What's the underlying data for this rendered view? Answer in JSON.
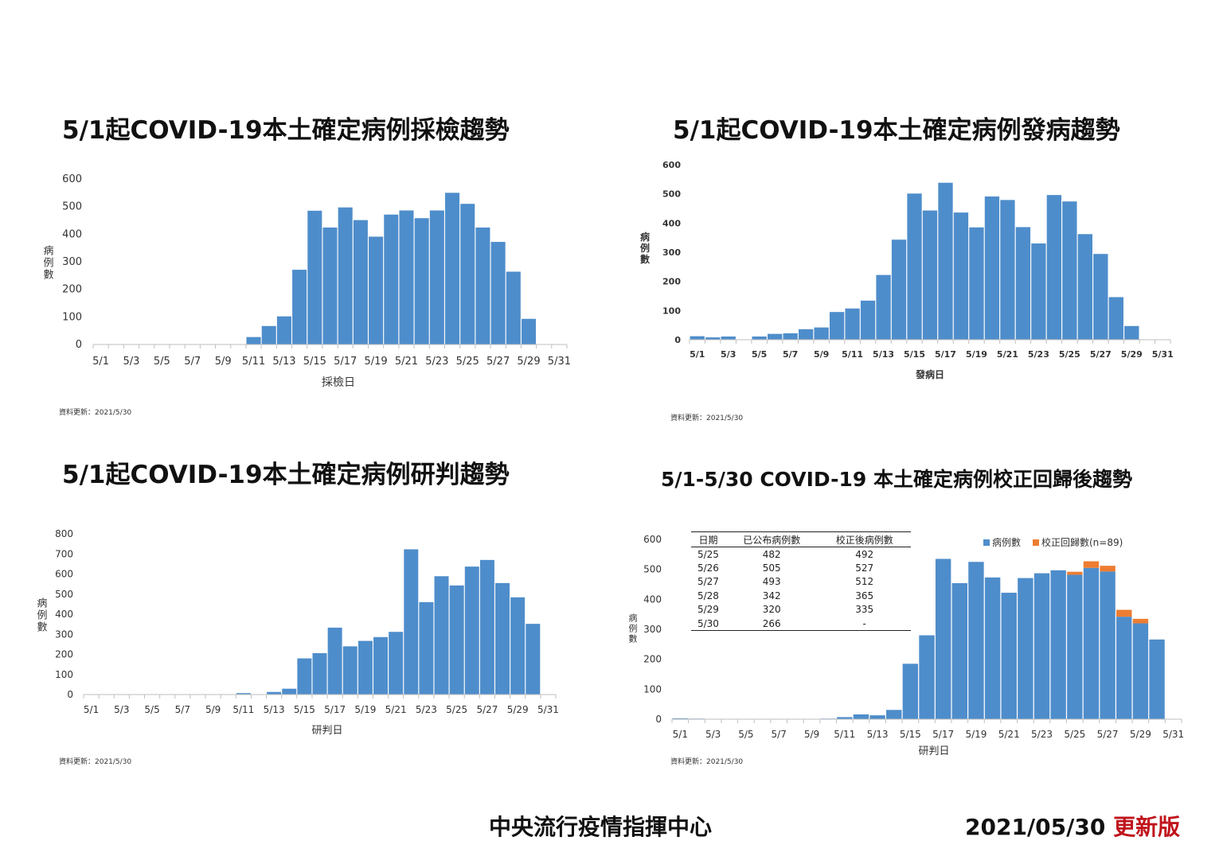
{
  "colors": {
    "bar": "#4e8dcb",
    "correction": "#ed7d31",
    "axis": "#bfbfbf",
    "text": "#333333",
    "edition": "#c0141c"
  },
  "x_ticks": [
    "5/1",
    "5/3",
    "5/5",
    "5/7",
    "5/9",
    "5/11",
    "5/13",
    "5/15",
    "5/17",
    "5/19",
    "5/21",
    "5/23",
    "5/25",
    "5/27",
    "5/29",
    "5/31"
  ],
  "panels": {
    "sampling": {
      "title": "5/1起COVID-19本土確定病例採檢趨勢",
      "xlabel": "採檢日",
      "ylabel": "病例數",
      "footnote": "資料更新：2021/5/30"
    },
    "onset": {
      "title": "5/1起COVID-19本土確定病例發病趨勢",
      "xlabel": "發病日",
      "ylabel": "病例數",
      "footnote": "資料更新：2021/5/30"
    },
    "diagnosis": {
      "title": "5/1起COVID-19本土確定病例研判趨勢",
      "xlabel": "研判日",
      "ylabel": "病例數",
      "footnote": "資料更新：2021/5/30"
    },
    "corrected": {
      "title": "5/1-5/30 COVID-19 本土確定病例校正回歸後趨勢",
      "xlabel": "研判日",
      "ylabel": "病例數",
      "footnote": "資料更新：2021/5/30",
      "legend": {
        "cases": "病例數",
        "correction": "校正回歸數(n=89)"
      },
      "table": {
        "headers": [
          "日期",
          "已公布病例數",
          "校正後病例數"
        ],
        "rows": [
          [
            "5/25",
            "482",
            "492"
          ],
          [
            "5/26",
            "505",
            "527"
          ],
          [
            "5/27",
            "493",
            "512"
          ],
          [
            "5/28",
            "342",
            "365"
          ],
          [
            "5/29",
            "320",
            "335"
          ],
          [
            "5/30",
            "266",
            "-"
          ]
        ]
      }
    }
  },
  "footer": {
    "center": "中央流行疫情指揮中心",
    "date": "2021/05/30",
    "edition": "更新版"
  },
  "chart_data": [
    {
      "id": "sampling",
      "type": "bar",
      "title": "5/1起COVID-19本土確定病例採檢趨勢",
      "xlabel": "採檢日",
      "ylabel": "病例數",
      "ylim": [
        0,
        600
      ],
      "yticks": [
        0,
        100,
        200,
        300,
        400,
        500,
        600
      ],
      "categories": [
        "5/1",
        "5/2",
        "5/3",
        "5/4",
        "5/5",
        "5/6",
        "5/7",
        "5/8",
        "5/9",
        "5/10",
        "5/11",
        "5/12",
        "5/13",
        "5/14",
        "5/15",
        "5/16",
        "5/17",
        "5/18",
        "5/19",
        "5/20",
        "5/21",
        "5/22",
        "5/23",
        "5/24",
        "5/25",
        "5/26",
        "5/27",
        "5/28",
        "5/29",
        "5/30"
      ],
      "values": [
        0,
        0,
        0,
        0,
        0,
        0,
        0,
        0,
        0,
        0,
        27,
        67,
        102,
        271,
        485,
        424,
        497,
        451,
        391,
        471,
        486,
        458,
        486,
        550,
        510,
        424,
        372,
        264,
        93,
        0
      ]
    },
    {
      "id": "onset",
      "type": "bar",
      "title": "5/1起COVID-19本土確定病例發病趨勢",
      "xlabel": "發病日",
      "ylabel": "病例數",
      "ylim": [
        0,
        600
      ],
      "yticks": [
        0,
        100,
        200,
        300,
        400,
        500,
        600
      ],
      "categories": [
        "5/1",
        "5/2",
        "5/3",
        "5/4",
        "5/5",
        "5/6",
        "5/7",
        "5/8",
        "5/9",
        "5/10",
        "5/11",
        "5/12",
        "5/13",
        "5/14",
        "5/15",
        "5/16",
        "5/17",
        "5/18",
        "5/19",
        "5/20",
        "5/21",
        "5/22",
        "5/23",
        "5/24",
        "5/25",
        "5/26",
        "5/27",
        "5/28",
        "5/29",
        "5/30"
      ],
      "values": [
        12,
        8,
        11,
        0,
        11,
        20,
        22,
        36,
        42,
        95,
        107,
        134,
        222,
        343,
        501,
        443,
        538,
        436,
        385,
        491,
        479,
        386,
        330,
        496,
        474,
        362,
        294,
        146,
        47,
        0
      ]
    },
    {
      "id": "diagnosis",
      "type": "bar",
      "title": "5/1起COVID-19本土確定病例研判趨勢",
      "xlabel": "研判日",
      "ylabel": "病例數",
      "ylim": [
        0,
        800
      ],
      "yticks": [
        0,
        100,
        200,
        300,
        400,
        500,
        600,
        700,
        800
      ],
      "categories": [
        "5/1",
        "5/2",
        "5/3",
        "5/4",
        "5/5",
        "5/6",
        "5/7",
        "5/8",
        "5/9",
        "5/10",
        "5/11",
        "5/12",
        "5/13",
        "5/14",
        "5/15",
        "5/16",
        "5/17",
        "5/18",
        "5/19",
        "5/20",
        "5/21",
        "5/22",
        "5/23",
        "5/24",
        "5/25",
        "5/26",
        "5/27",
        "5/28",
        "5/29",
        "5/30"
      ],
      "values": [
        0,
        0,
        0,
        0,
        0,
        0,
        0,
        0,
        0,
        0,
        7,
        0,
        13,
        29,
        180,
        206,
        333,
        240,
        267,
        286,
        312,
        723,
        460,
        589,
        543,
        637,
        670,
        555,
        484,
        352
      ]
    },
    {
      "id": "corrected",
      "type": "bar",
      "title": "5/1-5/30 COVID-19 本土確定病例校正回歸後趨勢",
      "xlabel": "研判日",
      "ylabel": "病例數",
      "ylim": [
        0,
        600
      ],
      "yticks": [
        0,
        100,
        200,
        300,
        400,
        500,
        600
      ],
      "categories": [
        "5/1",
        "5/2",
        "5/3",
        "5/4",
        "5/5",
        "5/6",
        "5/7",
        "5/8",
        "5/9",
        "5/10",
        "5/11",
        "5/12",
        "5/13",
        "5/14",
        "5/15",
        "5/16",
        "5/17",
        "5/18",
        "5/19",
        "5/20",
        "5/21",
        "5/22",
        "5/23",
        "5/24",
        "5/25",
        "5/26",
        "5/27",
        "5/28",
        "5/29",
        "5/30"
      ],
      "series": [
        {
          "name": "病例數",
          "values": [
            3,
            2,
            0,
            0,
            0,
            0,
            0,
            0,
            1,
            2,
            7,
            16,
            13,
            31,
            185,
            280,
            535,
            454,
            525,
            473,
            422,
            471,
            487,
            497,
            482,
            505,
            493,
            342,
            320,
            266
          ]
        },
        {
          "name": "校正回歸數(n=89)",
          "values": [
            0,
            0,
            0,
            0,
            0,
            0,
            0,
            0,
            0,
            0,
            0,
            0,
            0,
            0,
            0,
            0,
            0,
            0,
            0,
            0,
            0,
            0,
            0,
            0,
            10,
            22,
            19,
            23,
            15,
            0
          ]
        }
      ]
    }
  ]
}
